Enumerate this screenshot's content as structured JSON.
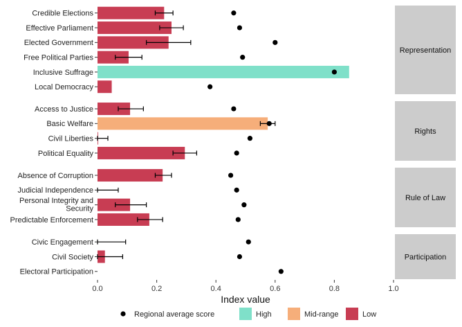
{
  "chart_data": {
    "type": "bar",
    "orientation": "horizontal",
    "xlabel": "Index value",
    "xlim": [
      0,
      1.0
    ],
    "xticks": [
      "0.0",
      "0.2",
      "0.4",
      "0.6",
      "0.8",
      "1.0"
    ],
    "grid": false,
    "legend_position": "bottom",
    "colors": {
      "High": "#7fe0c9",
      "Mid-range": "#f6ae7a",
      "Low": "#c83d53",
      "Regional average score": "#000000",
      "strip": "#cccccc"
    },
    "legend": {
      "items": [
        {
          "label": "Regional average score",
          "kind": "point"
        },
        {
          "label": "High",
          "kind": "fill"
        },
        {
          "label": "Mid-range",
          "kind": "fill"
        },
        {
          "label": "Low",
          "kind": "fill"
        }
      ]
    },
    "panels": [
      {
        "name": "Representation",
        "rows": [
          {
            "label": "Credible Elections",
            "value": 0.225,
            "err": [
              0.195,
              0.255
            ],
            "category": "Low",
            "regional_avg": 0.46
          },
          {
            "label": "Effective Parliament",
            "value": 0.25,
            "err": [
              0.21,
              0.29
            ],
            "category": "Low",
            "regional_avg": 0.48
          },
          {
            "label": "Elected Government",
            "value": 0.24,
            "err": [
              0.165,
              0.315
            ],
            "category": "Low",
            "regional_avg": 0.6
          },
          {
            "label": "Free Political Parties",
            "value": 0.105,
            "err": [
              0.06,
              0.15
            ],
            "category": "Low",
            "regional_avg": 0.49
          },
          {
            "label": "Inclusive Suffrage",
            "value": 0.85,
            "err": null,
            "category": "High",
            "regional_avg": 0.8
          },
          {
            "label": "Local Democracy",
            "value": 0.048,
            "err": null,
            "category": "Low",
            "regional_avg": 0.38
          }
        ]
      },
      {
        "name": "Rights",
        "rows": [
          {
            "label": "Access to Justice",
            "value": 0.11,
            "err": [
              0.07,
              0.155
            ],
            "category": "Low",
            "regional_avg": 0.46
          },
          {
            "label": "Basic Welfare",
            "value": 0.575,
            "err": [
              0.55,
              0.6
            ],
            "category": "Mid-range",
            "regional_avg": 0.58
          },
          {
            "label": "Civil Liberties",
            "value": 0.002,
            "err": [
              0.0,
              0.035
            ],
            "category": "Low",
            "regional_avg": 0.515
          },
          {
            "label": "Political Equality",
            "value": 0.295,
            "err": [
              0.255,
              0.335
            ],
            "category": "Low",
            "regional_avg": 0.47
          }
        ]
      },
      {
        "name": "Rule of Law",
        "rows": [
          {
            "label": "Absence of Corruption",
            "value": 0.22,
            "err": [
              0.195,
              0.25
            ],
            "category": "Low",
            "regional_avg": 0.45
          },
          {
            "label": "Judicial Independence",
            "value": 0.0,
            "err": [
              0.0,
              0.07
            ],
            "category": "Low",
            "regional_avg": 0.47
          },
          {
            "label": "Personal Integrity and Security",
            "value": 0.11,
            "err": [
              0.06,
              0.165
            ],
            "category": "Low",
            "regional_avg": 0.495
          },
          {
            "label": "Predictable Enforcement",
            "value": 0.175,
            "err": [
              0.135,
              0.22
            ],
            "category": "Low",
            "regional_avg": 0.475
          }
        ]
      },
      {
        "name": "Participation",
        "rows": [
          {
            "label": "Civic Engagement",
            "value": 0.0,
            "err": [
              0.0,
              0.095
            ],
            "category": "Low",
            "regional_avg": 0.51
          },
          {
            "label": "Civil Society",
            "value": 0.025,
            "err": [
              0.0,
              0.085
            ],
            "category": "Low",
            "regional_avg": 0.48
          },
          {
            "label": "Electoral Participation",
            "value": 0.0,
            "err": null,
            "category": "Low",
            "regional_avg": 0.62
          }
        ]
      }
    ]
  }
}
